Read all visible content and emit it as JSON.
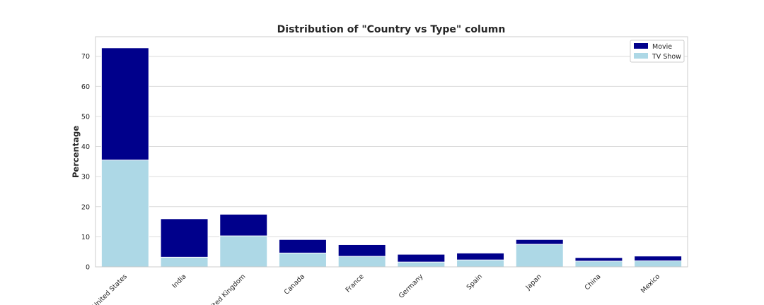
{
  "chart_data": {
    "type": "bar",
    "stacked": false,
    "title": "Distribution of \"Country vs Type\" column",
    "xlabel": "",
    "ylabel": "Percentage",
    "ylim": [
      0,
      76.5
    ],
    "yticks": [
      0,
      10,
      20,
      30,
      40,
      50,
      60,
      70
    ],
    "grid": true,
    "legend_position": "top-right",
    "categories": [
      "United States",
      "India",
      "United Kingdom",
      "Canada",
      "France",
      "Germany",
      "Spain",
      "Japan",
      "China",
      "Mexico"
    ],
    "series": [
      {
        "name": "Movie",
        "color": "#00008b",
        "values": [
          72.8,
          16.0,
          17.5,
          9.1,
          7.4,
          4.2,
          4.6,
          9.1,
          3.1,
          3.6
        ]
      },
      {
        "name": "TV Show",
        "color": "#add8e6",
        "values": [
          35.5,
          3.2,
          10.3,
          4.6,
          3.5,
          1.6,
          2.3,
          7.5,
          1.9,
          2.0
        ]
      }
    ]
  }
}
